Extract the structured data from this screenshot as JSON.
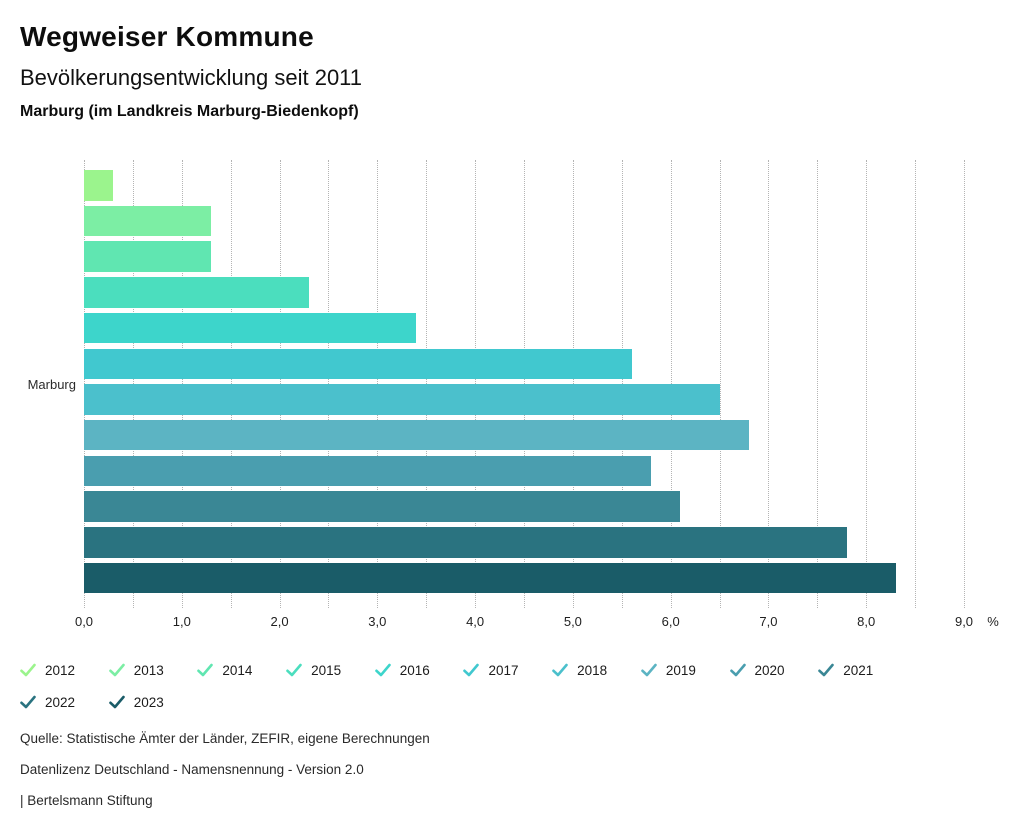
{
  "header": {
    "title": "Wegweiser Kommune",
    "subtitle": "Bevölkerungsentwicklung seit 2011",
    "location": "Marburg (im Landkreis Marburg-Biedenkopf)"
  },
  "chart_data": {
    "type": "bar",
    "orientation": "horizontal",
    "title": "Bevölkerungsentwicklung seit 2011",
    "group_label": "Marburg",
    "categories": [
      "2012",
      "2013",
      "2014",
      "2015",
      "2016",
      "2017",
      "2018",
      "2019",
      "2020",
      "2021",
      "2022",
      "2023"
    ],
    "values": [
      0.3,
      1.3,
      1.3,
      2.3,
      3.4,
      5.6,
      6.5,
      6.8,
      5.8,
      6.1,
      7.8,
      8.3
    ],
    "colors": [
      "#9BF48D",
      "#7CEEA4",
      "#60E6B1",
      "#4BDEBE",
      "#3DD5CB",
      "#41C8CF",
      "#4BC0CC",
      "#5CB4C3",
      "#4A9EAF",
      "#3A8795",
      "#2A7380",
      "#1A5C68"
    ],
    "xlim": [
      0,
      9.0
    ],
    "gridline_step": 0.5,
    "grid": true,
    "x_tick_labels": [
      "0,0",
      "1,0",
      "2,0",
      "3,0",
      "4,0",
      "5,0",
      "6,0",
      "7,0",
      "8,0",
      "9,0"
    ],
    "x_unit": "%",
    "legend_position": "bottom"
  },
  "legend": {
    "icon": "check-icon"
  },
  "footer": {
    "source": "Quelle: Statistische Ämter der Länder, ZEFIR, eigene Berechnungen",
    "license": "Datenlizenz Deutschland - Namensnennung - Version 2.0",
    "attribution": "| Bertelsmann Stiftung"
  }
}
